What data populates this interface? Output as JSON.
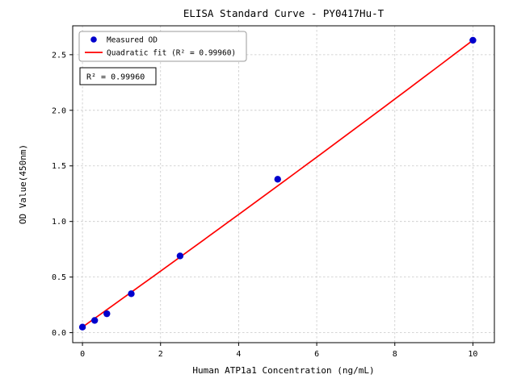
{
  "figure": {
    "background": "#ffffff"
  },
  "chart_data": {
    "type": "scatter",
    "title": "ELISA Standard Curve - PY0417Hu-T",
    "xlabel": "Human ATP1a1 Concentration (ng/mL)",
    "ylabel": "OD Value(450nm)",
    "xlim": [
      -0.25,
      10.55
    ],
    "ylim": [
      -0.09,
      2.76
    ],
    "x_ticks": [
      0,
      2,
      4,
      6,
      8,
      10
    ],
    "x_tick_labels": [
      "0",
      "2",
      "4",
      "6",
      "8",
      "10"
    ],
    "y_ticks": [
      0.0,
      0.5,
      1.0,
      1.5,
      2.0,
      2.5
    ],
    "y_tick_labels": [
      "0.0",
      "0.5",
      "1.0",
      "1.5",
      "2.0",
      "2.5"
    ],
    "grid": true,
    "grid_style": {
      "color": "#c8c8c8",
      "dash": "2.5 2.5"
    },
    "series": [
      {
        "name": "Measured OD",
        "type": "scatter",
        "color": "#0000cd",
        "x": [
          0,
          0.3125,
          0.625,
          1.25,
          2.5,
          5,
          10
        ],
        "y": [
          0.05,
          0.11,
          0.17,
          0.35,
          0.69,
          1.38,
          2.63
        ]
      },
      {
        "name": "Quadratic fit",
        "type": "line",
        "color": "#ff0000",
        "fit_coefficients": {
          "c0": 0.05,
          "c1": 0.25,
          "c2": 0.0008
        },
        "x_range": [
          0,
          10
        ],
        "r_squared": "0.99960"
      }
    ],
    "legend": {
      "position": "upper-left",
      "entries": [
        {
          "label": "Measured OD",
          "marker": "dot",
          "color": "#0000cd"
        },
        {
          "label": "Quadratic fit (R² = 0.99960)",
          "marker": "line",
          "color": "#ff0000"
        }
      ]
    },
    "annotation": {
      "text": "R² = 0.99960"
    }
  }
}
